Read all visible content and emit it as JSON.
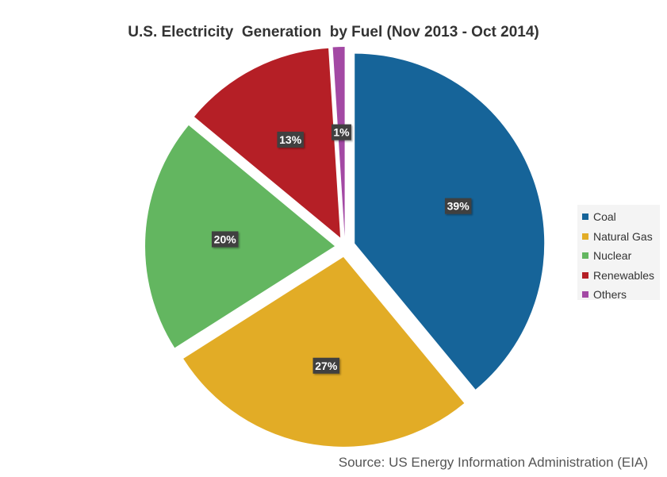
{
  "chart_data": {
    "type": "pie",
    "title": "U.S. Electricity  Generation  by Fuel (Nov 2013 - Oct 2014)",
    "categories": [
      "Coal",
      "Natural Gas",
      "Nuclear",
      "Renewables",
      "Others"
    ],
    "values": [
      39,
      27,
      20,
      13,
      1
    ],
    "data_labels": [
      "39%",
      "27%",
      "20%",
      "13%",
      "1%"
    ],
    "colors": [
      "#166499",
      "#e2ac26",
      "#63b660",
      "#b51f26",
      "#a349a4"
    ],
    "exploded": true,
    "legend_position": "right"
  },
  "source": "Source: US Energy Information Administration (EIA)"
}
